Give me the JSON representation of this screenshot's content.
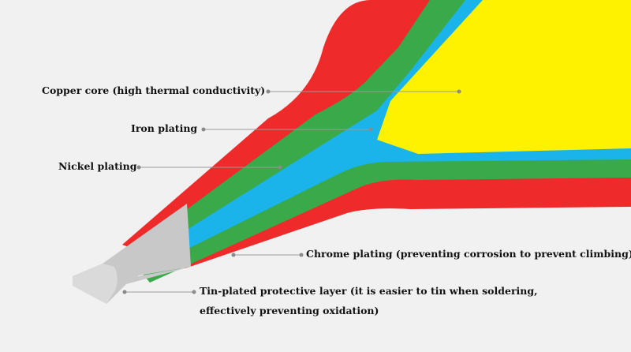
{
  "diagram": {
    "subject": "soldering iron tip cross-section",
    "labels": {
      "copper_core": "Copper core (high thermal conductivity)",
      "iron_plating": "Iron plating",
      "nickel_plating": "Nickel plating",
      "chrome_plating": "Chrome plating (preventing corrosion to prevent climbing)",
      "tin_line1": "Tin-plated protective layer (it is easier to tin when soldering,",
      "tin_line2": "effectively preventing oxidation)"
    },
    "colors": {
      "background": "#f1f1f1",
      "chrome_layer": "#ee2a2a",
      "nickel_layer": "#3aa94a",
      "iron_layer": "#1ab4ea",
      "copper_core": "#fff200",
      "tin_tip": "#c8c8c8",
      "tin_tip_face": "#dadada",
      "leader_line": "#9a9a9a",
      "label_text": "#111111"
    }
  }
}
